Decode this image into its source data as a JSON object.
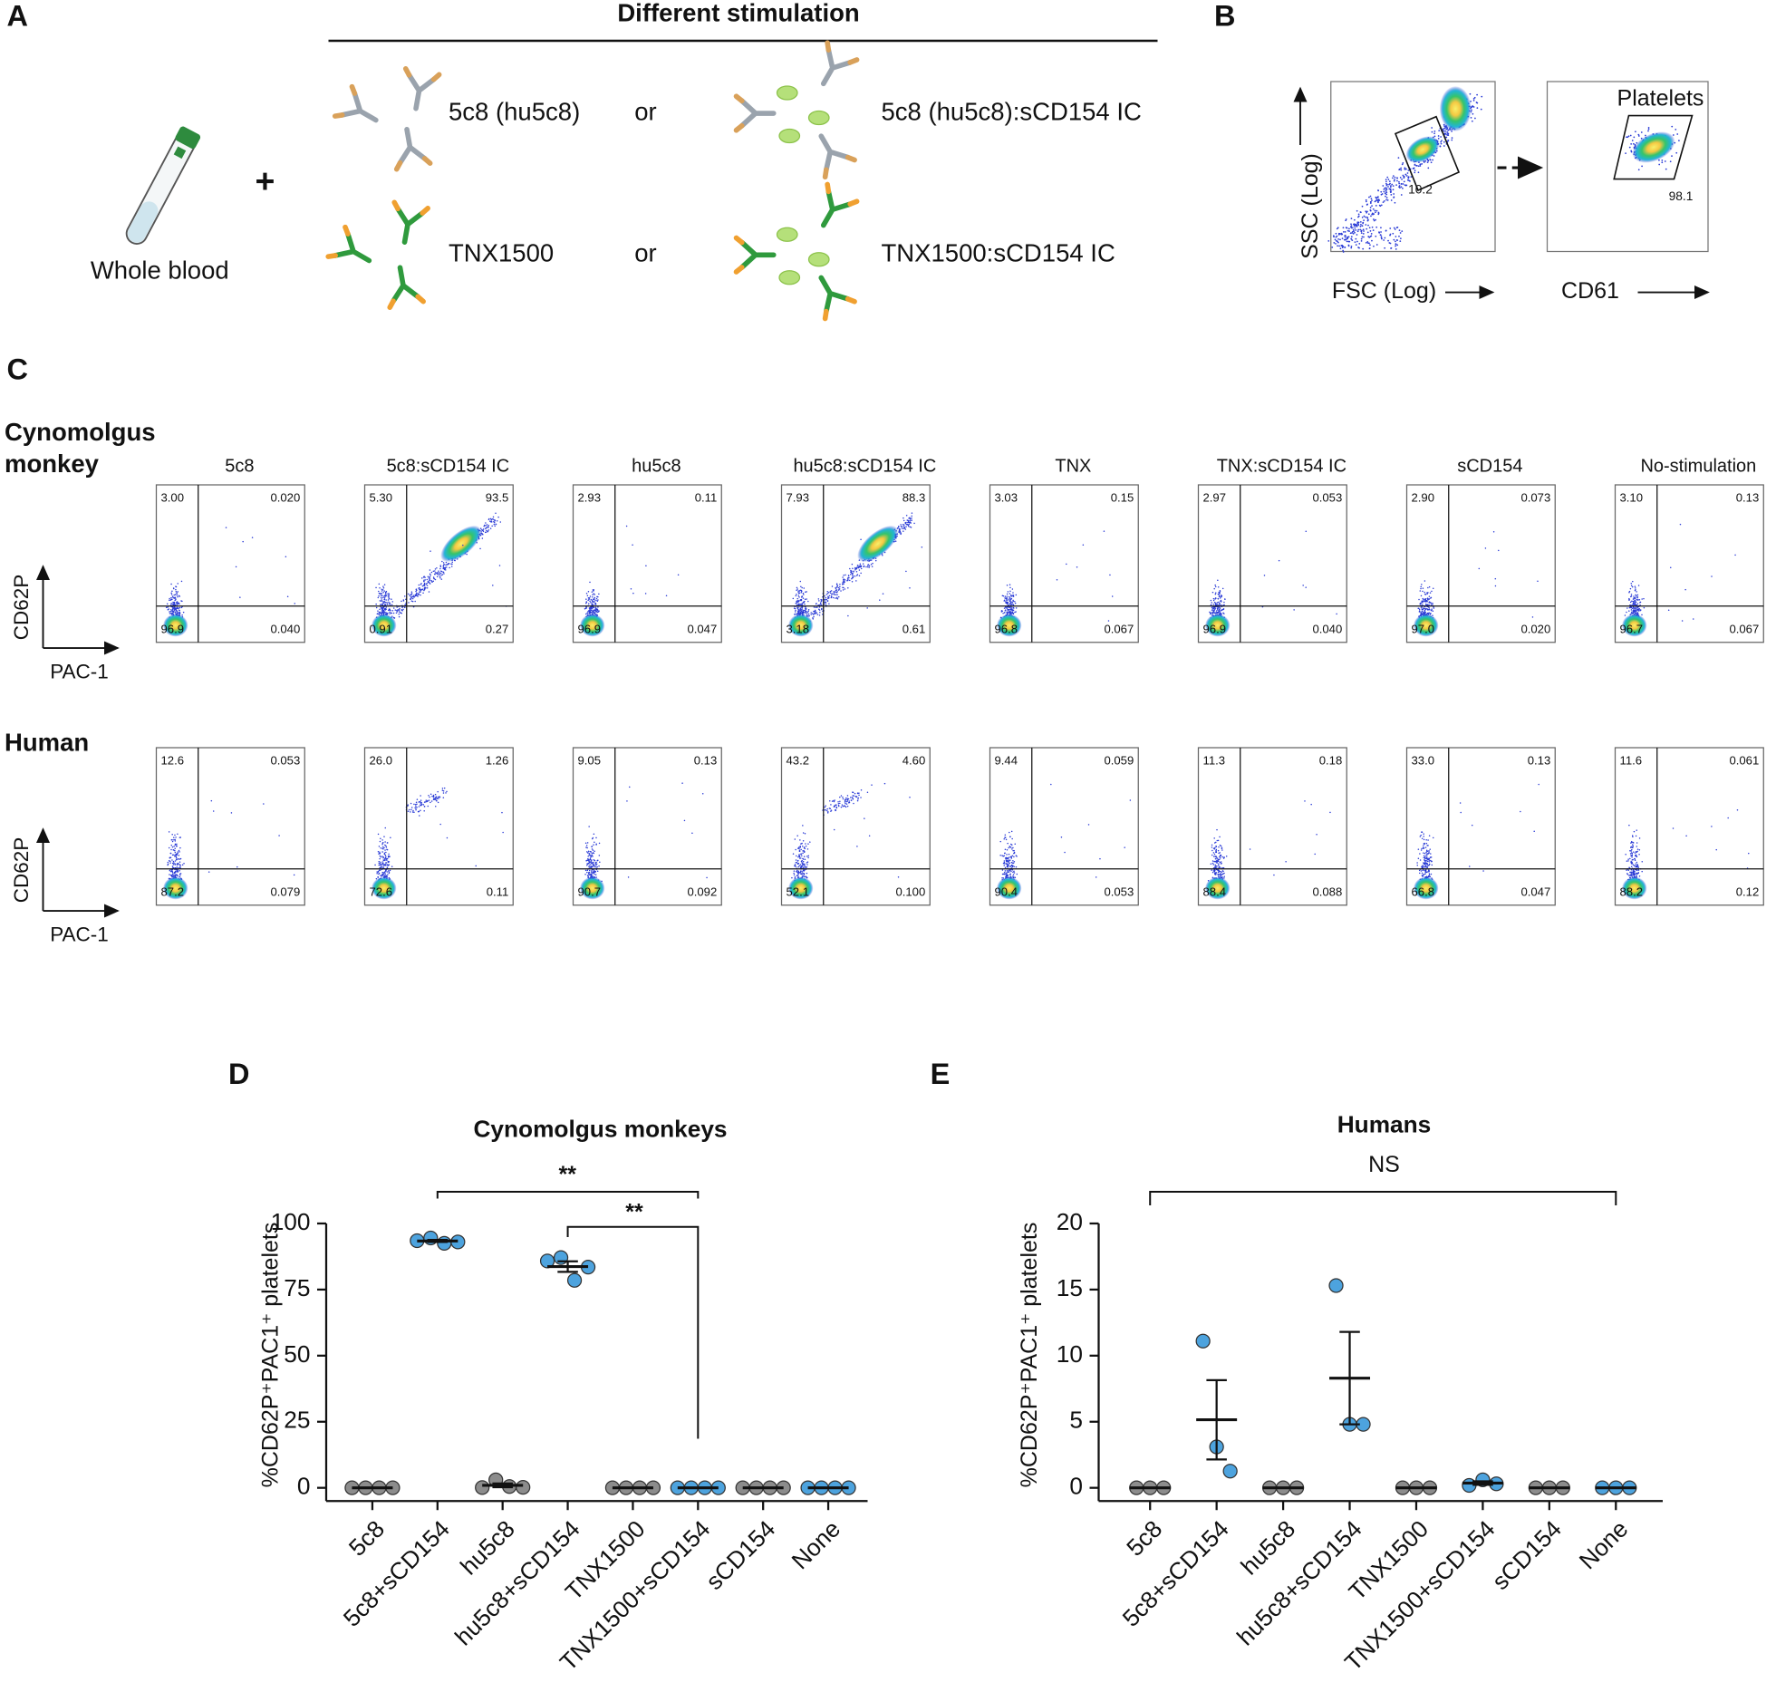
{
  "panel_a": {
    "label": "A",
    "header": "Different stimulation",
    "sample": "Whole blood",
    "plus": "+",
    "rows": [
      {
        "antibody": "5c8 (hu5c8)",
        "or": "or",
        "complex": "5c8 (hu5c8):sCD154 IC"
      },
      {
        "antibody": "TNX1500",
        "or": "or",
        "complex": "TNX1500:sCD154 IC"
      }
    ]
  },
  "panel_b": {
    "label": "B",
    "gate1": {
      "y_label": "SSC (Log)",
      "x_label": "FSC (Log)",
      "value": "10.2"
    },
    "gate2": {
      "title": "Platelets",
      "x_label": "CD61",
      "value": "98.1"
    }
  },
  "panel_c": {
    "label": "C",
    "columns": [
      "5c8",
      "5c8:sCD154 IC",
      "hu5c8",
      "hu5c8:sCD154 IC",
      "TNX",
      "TNX:sCD154 IC",
      "sCD154",
      "No-stimulation"
    ],
    "rows": [
      {
        "species": [
          "Cynomolgus",
          "monkey"
        ],
        "y_label": "CD62P",
        "x_label": "PAC-1",
        "plots": [
          {
            "ul": "3.00",
            "ur": "0.020",
            "ll": "96.9",
            "lr": "0.040"
          },
          {
            "ul": "5.30",
            "ur": "93.5",
            "ll": "0.91",
            "lr": "0.27"
          },
          {
            "ul": "2.93",
            "ur": "0.11",
            "ll": "96.9",
            "lr": "0.047"
          },
          {
            "ul": "7.93",
            "ur": "88.3",
            "ll": "3.18",
            "lr": "0.61"
          },
          {
            "ul": "3.03",
            "ur": "0.15",
            "ll": "96.8",
            "lr": "0.067"
          },
          {
            "ul": "2.97",
            "ur": "0.053",
            "ll": "96.9",
            "lr": "0.040"
          },
          {
            "ul": "2.90",
            "ur": "0.073",
            "ll": "97.0",
            "lr": "0.020"
          },
          {
            "ul": "3.10",
            "ur": "0.13",
            "ll": "96.7",
            "lr": "0.067"
          }
        ]
      },
      {
        "species": [
          "Human"
        ],
        "y_label": "CD62P",
        "x_label": "PAC-1",
        "plots": [
          {
            "ul": "12.6",
            "ur": "0.053",
            "ll": "87.2",
            "lr": "0.079"
          },
          {
            "ul": "26.0",
            "ur": "1.26",
            "ll": "72.6",
            "lr": "0.11"
          },
          {
            "ul": "9.05",
            "ur": "0.13",
            "ll": "90.7",
            "lr": "0.092"
          },
          {
            "ul": "43.2",
            "ur": "4.60",
            "ll": "52.1",
            "lr": "0.100"
          },
          {
            "ul": "9.44",
            "ur": "0.059",
            "ll": "90.4",
            "lr": "0.053"
          },
          {
            "ul": "11.3",
            "ur": "0.18",
            "ll": "88.4",
            "lr": "0.088"
          },
          {
            "ul": "33.0",
            "ur": "0.13",
            "ll": "66.8",
            "lr": "0.047"
          },
          {
            "ul": "11.6",
            "ur": "0.061",
            "ll": "88.2",
            "lr": "0.12"
          }
        ]
      }
    ]
  },
  "chart_data": [
    {
      "panel": "D",
      "type": "dot",
      "title": "Cynomolgus monkeys",
      "y_label": "%CD62P⁺PAC1⁺ platelets",
      "categories": [
        "5c8",
        "5c8+sCD154",
        "hu5c8",
        "hu5c8+sCD154",
        "TNX1500",
        "TNX1500+sCD154",
        "sCD154",
        "None"
      ],
      "colors": [
        "#8c8c8c",
        "#4da3de",
        "#8c8c8c",
        "#4da3de",
        "#8c8c8c",
        "#4da3de",
        "#8c8c8c",
        "#4da3de"
      ],
      "points": [
        [
          0,
          0,
          0,
          0
        ],
        [
          93.5,
          94.5,
          92.5,
          93
        ],
        [
          0.11,
          3,
          0.5,
          0.2
        ],
        [
          85.8,
          87.1,
          78.5,
          83.5
        ],
        [
          0,
          0,
          0,
          0
        ],
        [
          0,
          0,
          0,
          0
        ],
        [
          0,
          0,
          0,
          0
        ],
        [
          0,
          0,
          0,
          0
        ]
      ],
      "means": [
        0,
        93.4,
        0.95,
        83.7,
        0,
        0,
        0,
        0
      ],
      "sem": [
        0,
        0.4,
        0.7,
        2,
        0,
        0,
        0,
        0
      ],
      "ylim": [
        -5,
        100
      ],
      "yticks": [
        0,
        25,
        50,
        75,
        100
      ],
      "annotations": [
        "**",
        "**"
      ]
    },
    {
      "panel": "E",
      "type": "dot",
      "title": "Humans",
      "y_label": "%CD62P⁺PAC1⁺ platelets",
      "categories": [
        "5c8",
        "5c8+sCD154",
        "hu5c8",
        "hu5c8+sCD154",
        "TNX1500",
        "TNX1500+sCD154",
        "sCD154",
        "None"
      ],
      "colors": [
        "#8c8c8c",
        "#4da3de",
        "#8c8c8c",
        "#4da3de",
        "#8c8c8c",
        "#4da3de",
        "#8c8c8c",
        "#4da3de"
      ],
      "points": [
        [
          0,
          0,
          0
        ],
        [
          11.1,
          3.1,
          1.26
        ],
        [
          0,
          0,
          0
        ],
        [
          15.3,
          4.8,
          4.8
        ],
        [
          0,
          0,
          0
        ],
        [
          0.18,
          0.6,
          0.3
        ],
        [
          0,
          0,
          0
        ],
        [
          0,
          0,
          0
        ]
      ],
      "means": [
        0,
        5.15,
        0,
        8.3,
        0,
        0.36,
        0,
        0
      ],
      "sem": [
        0,
        3,
        0,
        3.5,
        0,
        0.13,
        0,
        0
      ],
      "ylim": [
        -1,
        20
      ],
      "yticks": [
        0,
        5,
        10,
        15,
        20
      ],
      "annotations": [
        "NS"
      ]
    }
  ]
}
